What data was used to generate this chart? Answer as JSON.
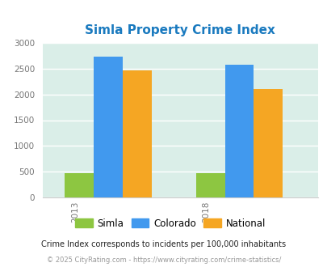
{
  "title": "Simla Property Crime Index",
  "title_color": "#1a7abf",
  "years": [
    "2013",
    "2018"
  ],
  "simla": [
    475,
    475
  ],
  "colorado": [
    2725,
    2580
  ],
  "national": [
    2460,
    2100
  ],
  "bar_colors": {
    "simla": "#8dc641",
    "colorado": "#4199ee",
    "national": "#f5a623"
  },
  "ylim": [
    0,
    3000
  ],
  "yticks": [
    0,
    500,
    1000,
    1500,
    2000,
    2500,
    3000
  ],
  "plot_bg": "#daeee8",
  "footnote1": "Crime Index corresponds to incidents per 100,000 inhabitants",
  "footnote2": "© 2025 CityRating.com - https://www.cityrating.com/crime-statistics/",
  "legend_labels": [
    "Simla",
    "Colorado",
    "National"
  ],
  "bar_width": 0.22
}
